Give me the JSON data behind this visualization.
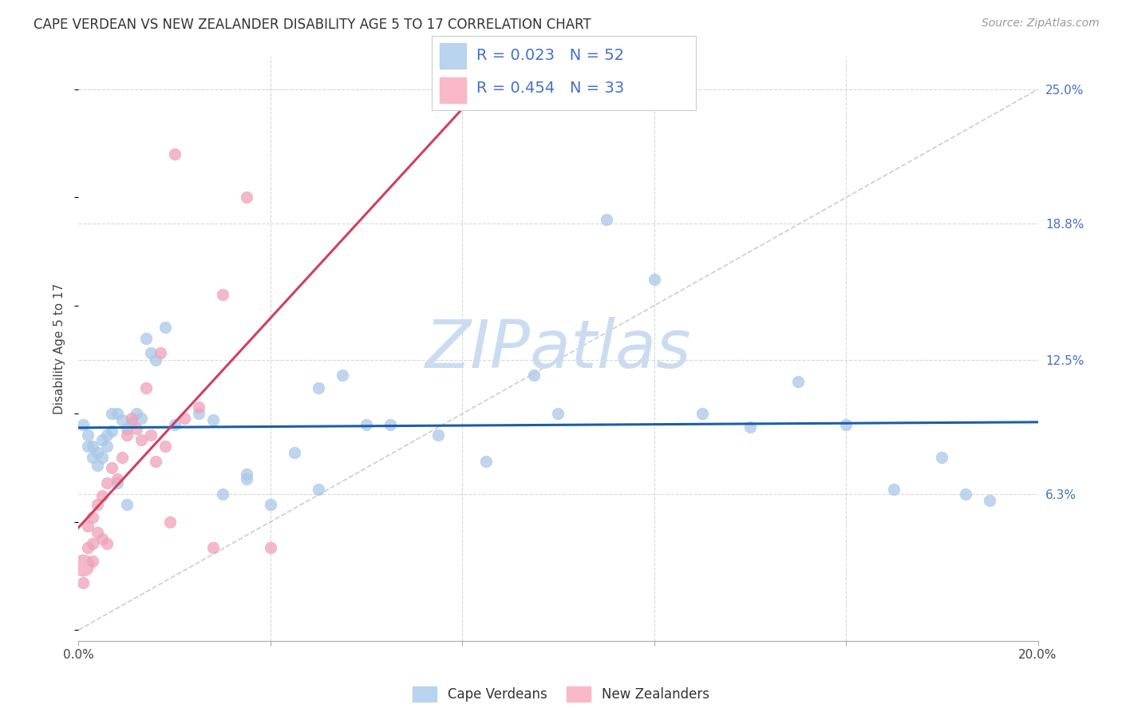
{
  "title": "CAPE VERDEAN VS NEW ZEALANDER DISABILITY AGE 5 TO 17 CORRELATION CHART",
  "source": "Source: ZipAtlas.com",
  "ylabel": "Disability Age 5 to 17",
  "xlim": [
    0.0,
    0.2
  ],
  "ylim": [
    -0.005,
    0.265
  ],
  "ytick_values": [
    0.063,
    0.125,
    0.188,
    0.25
  ],
  "ytick_labels": [
    "6.3%",
    "12.5%",
    "18.8%",
    "25.0%"
  ],
  "xtick_values": [
    0.0,
    0.04,
    0.08,
    0.12,
    0.16,
    0.2
  ],
  "xtick_labels": [
    "0.0%",
    "",
    "",
    "",
    "",
    "20.0%"
  ],
  "color_blue_fill": "#a8c8e8",
  "color_blue_edge": "#a8c8e8",
  "color_blue_line": "#1a5fa8",
  "color_pink_fill": "#f0a0b8",
  "color_pink_edge": "#f0a0b8",
  "color_pink_line": "#d04060",
  "color_diag": "#c8c8c8",
  "color_grid": "#d8d8d8",
  "watermark": "ZIPatlas",
  "watermark_color": "#ccdcf0",
  "background": "#ffffff",
  "blue_x": [
    0.001,
    0.002,
    0.002,
    0.003,
    0.003,
    0.004,
    0.004,
    0.005,
    0.005,
    0.006,
    0.006,
    0.007,
    0.007,
    0.008,
    0.009,
    0.01,
    0.011,
    0.012,
    0.013,
    0.014,
    0.015,
    0.016,
    0.018,
    0.02,
    0.025,
    0.028,
    0.03,
    0.035,
    0.04,
    0.045,
    0.05,
    0.055,
    0.06,
    0.065,
    0.075,
    0.085,
    0.095,
    0.1,
    0.11,
    0.12,
    0.13,
    0.14,
    0.15,
    0.16,
    0.17,
    0.18,
    0.185,
    0.19,
    0.035,
    0.05,
    0.01,
    0.008
  ],
  "blue_y": [
    0.095,
    0.09,
    0.085,
    0.085,
    0.08,
    0.082,
    0.076,
    0.088,
    0.08,
    0.09,
    0.085,
    0.1,
    0.092,
    0.1,
    0.097,
    0.093,
    0.096,
    0.1,
    0.098,
    0.135,
    0.128,
    0.125,
    0.14,
    0.095,
    0.1,
    0.097,
    0.063,
    0.072,
    0.058,
    0.082,
    0.112,
    0.118,
    0.095,
    0.095,
    0.09,
    0.078,
    0.118,
    0.1,
    0.19,
    0.162,
    0.1,
    0.094,
    0.115,
    0.095,
    0.065,
    0.08,
    0.063,
    0.06,
    0.07,
    0.065,
    0.058,
    0.068
  ],
  "pink_x": [
    0.001,
    0.001,
    0.002,
    0.002,
    0.003,
    0.003,
    0.003,
    0.004,
    0.004,
    0.005,
    0.005,
    0.006,
    0.006,
    0.007,
    0.008,
    0.009,
    0.01,
    0.011,
    0.012,
    0.013,
    0.014,
    0.015,
    0.016,
    0.017,
    0.018,
    0.019,
    0.02,
    0.022,
    0.025,
    0.028,
    0.03,
    0.035,
    0.04
  ],
  "pink_y": [
    0.03,
    0.022,
    0.048,
    0.038,
    0.052,
    0.04,
    0.032,
    0.058,
    0.045,
    0.062,
    0.042,
    0.068,
    0.04,
    0.075,
    0.07,
    0.08,
    0.09,
    0.098,
    0.093,
    0.088,
    0.112,
    0.09,
    0.078,
    0.128,
    0.085,
    0.05,
    0.22,
    0.098,
    0.103,
    0.038,
    0.155,
    0.2,
    0.038
  ],
  "pink_big_size": 380,
  "dot_size": 110
}
